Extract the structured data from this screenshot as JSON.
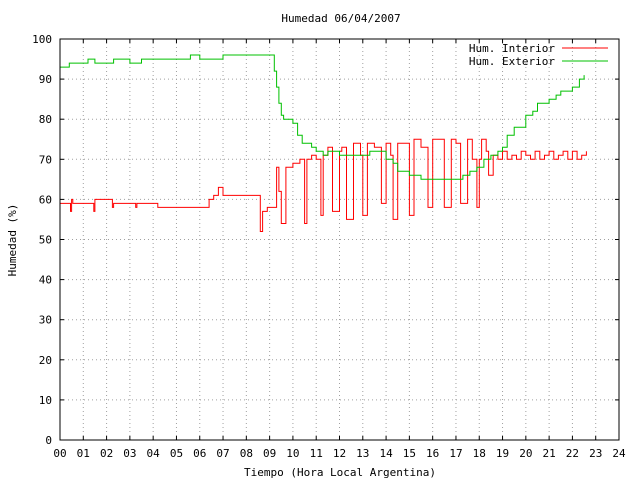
{
  "chart_data": {
    "type": "line",
    "title": "Humedad 06/04/2007",
    "xlabel": "Tiempo (Hora Local Argentina)",
    "ylabel": "Humedad (%)",
    "xlim": [
      0,
      24
    ],
    "ylim": [
      0,
      100
    ],
    "grid": true,
    "legend_position": "top-right",
    "x_ticks": [
      "00",
      "01",
      "02",
      "03",
      "04",
      "05",
      "06",
      "07",
      "08",
      "09",
      "10",
      "11",
      "12",
      "13",
      "14",
      "15",
      "16",
      "17",
      "18",
      "19",
      "20",
      "21",
      "22",
      "23",
      "24"
    ],
    "y_ticks": [
      "0",
      "10",
      "20",
      "30",
      "40",
      "50",
      "60",
      "70",
      "80",
      "90",
      "100"
    ],
    "series": [
      {
        "name": "Hum. Interior",
        "color": "#ff0000",
        "x": [
          0.0,
          0.4,
          0.45,
          0.5,
          0.55,
          0.6,
          1.0,
          1.4,
          1.45,
          1.5,
          2.0,
          2.2,
          2.25,
          2.3,
          3.0,
          3.2,
          3.25,
          3.3,
          4.0,
          4.2,
          5.0,
          6.0,
          6.4,
          6.6,
          6.8,
          7.0,
          7.3,
          8.0,
          8.5,
          8.6,
          8.7,
          8.9,
          9.3,
          9.4,
          9.5,
          9.7,
          10.0,
          10.3,
          10.5,
          10.6,
          10.8,
          11.0,
          11.2,
          11.3,
          11.5,
          11.7,
          12.0,
          12.1,
          12.3,
          12.6,
          12.9,
          13.0,
          13.2,
          13.5,
          13.8,
          14.0,
          14.2,
          14.3,
          14.5,
          14.8,
          15.0,
          15.2,
          15.5,
          15.8,
          16.0,
          16.2,
          16.5,
          16.8,
          17.0,
          17.2,
          17.5,
          17.7,
          17.9,
          18.0,
          18.1,
          18.3,
          18.4,
          18.6,
          18.8,
          19.0,
          19.2,
          19.4,
          19.6,
          19.8,
          20.0,
          20.2,
          20.4,
          20.6,
          20.8,
          21.0,
          21.2,
          21.4,
          21.6,
          21.8,
          22.0,
          22.2,
          22.4,
          22.6
        ],
        "y": [
          59,
          59,
          57,
          60,
          59,
          59,
          59,
          59,
          57,
          60,
          60,
          60,
          58,
          59,
          59,
          59,
          58,
          59,
          59,
          58,
          58,
          58,
          60,
          61,
          63,
          61,
          61,
          61,
          61,
          52,
          57,
          58,
          68,
          62,
          54,
          68,
          69,
          70,
          54,
          70,
          71,
          70,
          56,
          71,
          73,
          57,
          72,
          73,
          55,
          74,
          71,
          56,
          74,
          73,
          59,
          74,
          71,
          55,
          74,
          74,
          56,
          75,
          73,
          58,
          75,
          75,
          58,
          75,
          74,
          59,
          75,
          70,
          58,
          70,
          75,
          72,
          66,
          71,
          70,
          72,
          70,
          71,
          70,
          72,
          71,
          70,
          72,
          70,
          71,
          72,
          70,
          71,
          72,
          70,
          72,
          70,
          71,
          72
        ]
      },
      {
        "name": "Hum. Exterior",
        "color": "#00c000",
        "x": [
          0.0,
          0.3,
          0.4,
          1.0,
          1.2,
          1.5,
          2.0,
          2.3,
          3.0,
          3.5,
          4.0,
          5.0,
          5.6,
          6.0,
          6.5,
          7.0,
          8.0,
          8.5,
          9.0,
          9.2,
          9.3,
          9.4,
          9.5,
          9.6,
          10.0,
          10.2,
          10.4,
          10.8,
          11.0,
          11.3,
          11.5,
          12.0,
          12.2,
          12.5,
          13.0,
          13.3,
          13.5,
          14.0,
          14.3,
          14.5,
          15.0,
          15.5,
          16.0,
          16.5,
          17.0,
          17.3,
          17.6,
          17.9,
          18.2,
          18.5,
          18.8,
          19.0,
          19.2,
          19.5,
          20.0,
          20.3,
          20.5,
          21.0,
          21.3,
          21.5,
          22.0,
          22.3,
          22.5
        ],
        "y": [
          93,
          93,
          94,
          94,
          95,
          94,
          94,
          95,
          94,
          95,
          95,
          95,
          96,
          95,
          95,
          96,
          96,
          96,
          96,
          92,
          88,
          84,
          81,
          80,
          79,
          76,
          74,
          73,
          72,
          71,
          72,
          71,
          71,
          71,
          71,
          72,
          72,
          70,
          69,
          67,
          66,
          65,
          65,
          65,
          65,
          66,
          67,
          68,
          70,
          71,
          72,
          73,
          76,
          78,
          81,
          82,
          84,
          85,
          86,
          87,
          88,
          90,
          91
        ]
      }
    ]
  }
}
